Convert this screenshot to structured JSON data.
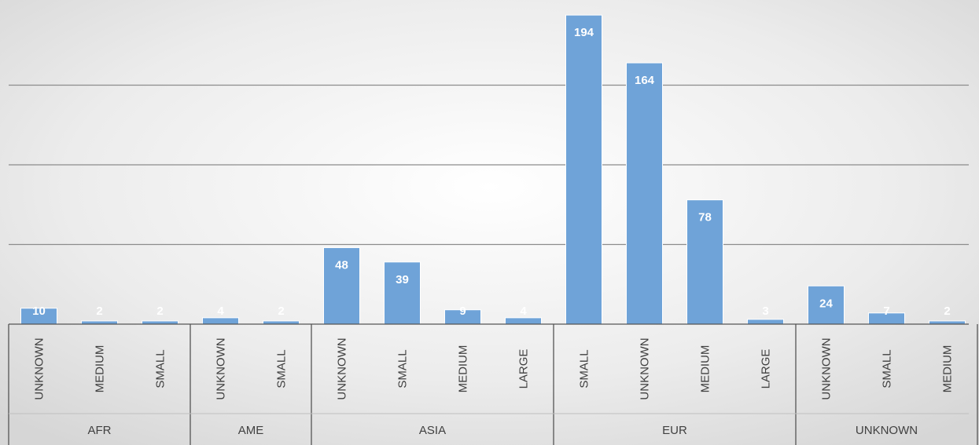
{
  "chart_data": {
    "type": "bar",
    "title": "",
    "xlabel": "",
    "ylabel": "",
    "ylim": [
      0,
      200
    ],
    "y_gridlines": [
      50,
      100,
      150
    ],
    "grid": true,
    "legend": "none",
    "bar_color": "#6fa3d8",
    "data_label_color": "#ffffff",
    "groups": [
      {
        "label": "AFR",
        "categories": [
          "UNKNOWN",
          "MEDIUM",
          "SMALL"
        ],
        "values": [
          10,
          2,
          2
        ]
      },
      {
        "label": "AME",
        "categories": [
          "UNKNOWN",
          "SMALL"
        ],
        "values": [
          4,
          2
        ]
      },
      {
        "label": "ASIA",
        "categories": [
          "UNKNOWN",
          "SMALL",
          "MEDIUM",
          "LARGE"
        ],
        "values": [
          48,
          39,
          9,
          4
        ]
      },
      {
        "label": "EUR",
        "categories": [
          "SMALL",
          "UNKNOWN",
          "MEDIUM",
          "LARGE"
        ],
        "values": [
          194,
          164,
          78,
          3
        ]
      },
      {
        "label": "UNKNOWN",
        "categories": [
          "UNKNOWN",
          "SMALL",
          "MEDIUM"
        ],
        "values": [
          24,
          7,
          2
        ]
      }
    ]
  }
}
